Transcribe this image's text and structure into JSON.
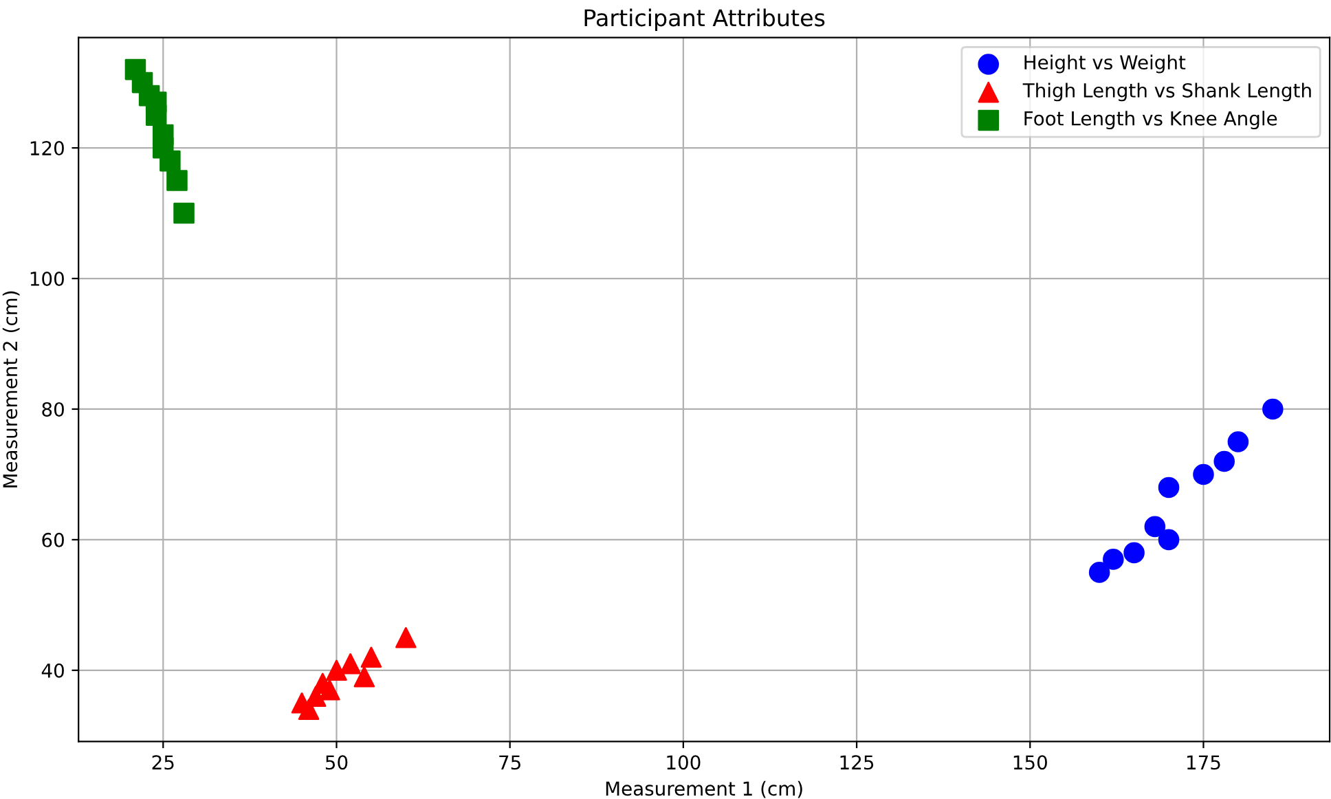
{
  "chart_data": {
    "type": "scatter",
    "title": "Participant Attributes",
    "xlabel": "Measurement 1 (cm)",
    "ylabel": "Measurement 2 (cm)",
    "xlim": [
      12.8,
      193.2
    ],
    "ylim": [
      29.1,
      136.9
    ],
    "xticks": [
      25,
      50,
      75,
      100,
      125,
      150,
      175
    ],
    "yticks": [
      40,
      60,
      80,
      100,
      120
    ],
    "grid": true,
    "legend": "top right",
    "series": [
      {
        "name": "Height vs Weight",
        "color": "#0000ff",
        "marker": "circle",
        "x": [
          160,
          162,
          165,
          168,
          170,
          170,
          175,
          178,
          180,
          185
        ],
        "values": [
          55,
          57,
          58,
          62,
          60,
          68,
          70,
          72,
          75,
          80
        ]
      },
      {
        "name": "Thigh Length vs Shank Length",
        "color": "#ff0000",
        "marker": "triangle",
        "x": [
          45,
          46,
          47,
          48,
          49,
          50,
          52,
          54,
          55,
          60
        ],
        "values": [
          35,
          34,
          36,
          38,
          37,
          40,
          41,
          39,
          42,
          45
        ]
      },
      {
        "name": "Foot Length vs Knee Angle",
        "color": "#008000",
        "marker": "square",
        "x": [
          21,
          22,
          23,
          24,
          24,
          25,
          25,
          26,
          27,
          28
        ],
        "values": [
          132,
          130,
          128,
          127,
          125,
          122,
          120,
          118,
          115,
          110
        ]
      }
    ]
  }
}
